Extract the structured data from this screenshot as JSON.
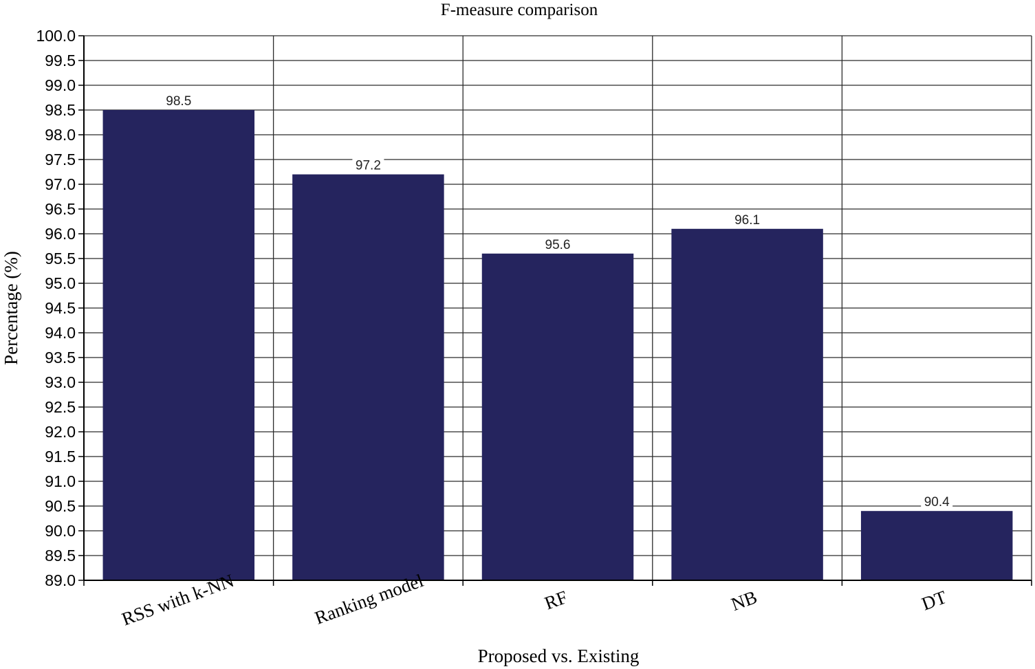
{
  "chart_data": {
    "type": "bar",
    "title": "F-measure comparison",
    "xlabel": "Proposed vs. Existing",
    "ylabel": "Percentage (%)",
    "categories": [
      "RSS with k-NN",
      "Ranking model",
      "RF",
      "NB",
      "DT"
    ],
    "values": [
      98.5,
      97.2,
      95.6,
      96.1,
      90.4
    ],
    "data_labels": [
      "98.5",
      "97.2",
      "95.6",
      "96.1",
      "90.4"
    ],
    "ylim": [
      89.0,
      100.0
    ],
    "ytick_step": 0.5,
    "ytick_labels": [
      "89.0",
      "89.5",
      "90.0",
      "90.5",
      "91.0",
      "91.5",
      "92.0",
      "92.5",
      "93.0",
      "93.5",
      "94.0",
      "94.5",
      "95.0",
      "95.5",
      "96.0",
      "96.5",
      "97.0",
      "97.5",
      "98.0",
      "98.5",
      "99.0",
      "99.5",
      "100.0"
    ],
    "grid": true,
    "legend": "none",
    "colors": {
      "bar": "#25245e",
      "grid": "#2b2b2b",
      "background": "#ffffff"
    }
  }
}
